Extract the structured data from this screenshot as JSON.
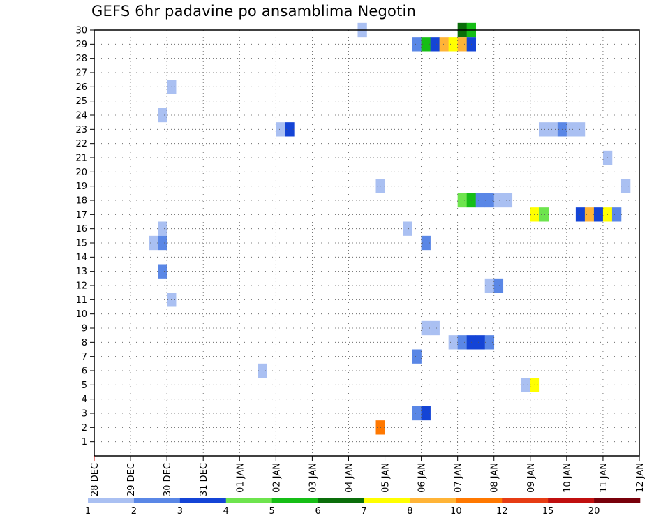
{
  "chart_data": {
    "type": "heatmap",
    "title": "GEFS 6hr padavine po ansamblima Negotin",
    "xlabel": "",
    "ylabel": "",
    "x_ticks": [
      "28 DEC",
      "29 DEC",
      "30 DEC",
      "31 DEC",
      "01 JAN",
      "02 JAN",
      "03 JAN",
      "04 JAN",
      "05 JAN",
      "06 JAN",
      "07 JAN",
      "08 JAN",
      "09 JAN",
      "10 JAN",
      "11 JAN",
      "12 JAN"
    ],
    "y_ticks": [
      1,
      2,
      3,
      4,
      5,
      6,
      7,
      8,
      9,
      10,
      11,
      12,
      13,
      14,
      15,
      16,
      17,
      18,
      19,
      20,
      21,
      22,
      23,
      24,
      25,
      26,
      27,
      28,
      29,
      30
    ],
    "xlim_days": [
      0,
      15
    ],
    "ylim": [
      0,
      30
    ],
    "grid": true,
    "colorbar": {
      "labels": [
        "1",
        "2",
        "3",
        "4",
        "5",
        "6",
        "7",
        "8",
        "10",
        "12",
        "15",
        "20"
      ],
      "colors": [
        "#aac0f2",
        "#5a87e6",
        "#1444d6",
        "#6ee44e",
        "#16be16",
        "#0a6e0a",
        "#ffff00",
        "#ffb437",
        "#ff7800",
        "#e63c14",
        "#c00f0f",
        "#78000a"
      ]
    },
    "cells_note": "each cell: day offset from 28 DEC 00Z, member row, precipitation class 1-12",
    "cells": [
      {
        "d": 7.25,
        "r": 30,
        "c": 1
      },
      {
        "d": 10.0,
        "r": 30,
        "c": 6
      },
      {
        "d": 10.25,
        "r": 30,
        "c": 5
      },
      {
        "d": 8.75,
        "r": 29,
        "c": 2
      },
      {
        "d": 9.0,
        "r": 29,
        "c": 5
      },
      {
        "d": 9.25,
        "r": 29,
        "c": 3
      },
      {
        "d": 9.5,
        "r": 29,
        "c": 8
      },
      {
        "d": 9.75,
        "r": 29,
        "c": 7
      },
      {
        "d": 10.0,
        "r": 29,
        "c": 8
      },
      {
        "d": 10.25,
        "r": 29,
        "c": 3
      },
      {
        "d": 2.0,
        "r": 26,
        "c": 1
      },
      {
        "d": 1.75,
        "r": 24,
        "c": 1
      },
      {
        "d": 5.0,
        "r": 23,
        "c": 1
      },
      {
        "d": 5.25,
        "r": 23,
        "c": 3
      },
      {
        "d": 12.25,
        "r": 23,
        "c": 1
      },
      {
        "d": 12.5,
        "r": 23,
        "c": 1
      },
      {
        "d": 12.75,
        "r": 23,
        "c": 2
      },
      {
        "d": 13.0,
        "r": 23,
        "c": 1
      },
      {
        "d": 13.25,
        "r": 23,
        "c": 1
      },
      {
        "d": 14.0,
        "r": 21,
        "c": 1
      },
      {
        "d": 7.75,
        "r": 19,
        "c": 1
      },
      {
        "d": 14.5,
        "r": 19,
        "c": 1
      },
      {
        "d": 10.0,
        "r": 18,
        "c": 4
      },
      {
        "d": 10.25,
        "r": 18,
        "c": 5
      },
      {
        "d": 10.5,
        "r": 18,
        "c": 2
      },
      {
        "d": 10.75,
        "r": 18,
        "c": 2
      },
      {
        "d": 11.0,
        "r": 18,
        "c": 1
      },
      {
        "d": 11.25,
        "r": 18,
        "c": 1
      },
      {
        "d": 12.0,
        "r": 17,
        "c": 7
      },
      {
        "d": 12.25,
        "r": 17,
        "c": 4
      },
      {
        "d": 13.25,
        "r": 17,
        "c": 3
      },
      {
        "d": 13.5,
        "r": 17,
        "c": 8
      },
      {
        "d": 13.75,
        "r": 17,
        "c": 3
      },
      {
        "d": 14.0,
        "r": 17,
        "c": 7
      },
      {
        "d": 14.25,
        "r": 17,
        "c": 2
      },
      {
        "d": 1.75,
        "r": 16,
        "c": 1
      },
      {
        "d": 8.5,
        "r": 16,
        "c": 1
      },
      {
        "d": 1.5,
        "r": 15,
        "c": 1
      },
      {
        "d": 1.75,
        "r": 15,
        "c": 2
      },
      {
        "d": 9.0,
        "r": 15,
        "c": 2
      },
      {
        "d": 1.75,
        "r": 13,
        "c": 2
      },
      {
        "d": 10.75,
        "r": 12,
        "c": 1
      },
      {
        "d": 11.0,
        "r": 12,
        "c": 2
      },
      {
        "d": 2.0,
        "r": 11,
        "c": 1
      },
      {
        "d": 9.0,
        "r": 9,
        "c": 1
      },
      {
        "d": 9.25,
        "r": 9,
        "c": 1
      },
      {
        "d": 9.75,
        "r": 8,
        "c": 1
      },
      {
        "d": 10.0,
        "r": 8,
        "c": 2
      },
      {
        "d": 10.25,
        "r": 8,
        "c": 3
      },
      {
        "d": 10.5,
        "r": 8,
        "c": 3
      },
      {
        "d": 10.75,
        "r": 8,
        "c": 2
      },
      {
        "d": 8.75,
        "r": 7,
        "c": 2
      },
      {
        "d": 4.5,
        "r": 6,
        "c": 1
      },
      {
        "d": 11.75,
        "r": 5,
        "c": 1
      },
      {
        "d": 12.0,
        "r": 5,
        "c": 7
      },
      {
        "d": 8.75,
        "r": 3,
        "c": 2
      },
      {
        "d": 9.0,
        "r": 3,
        "c": 3
      },
      {
        "d": 7.75,
        "r": 2,
        "c": 9
      }
    ]
  }
}
